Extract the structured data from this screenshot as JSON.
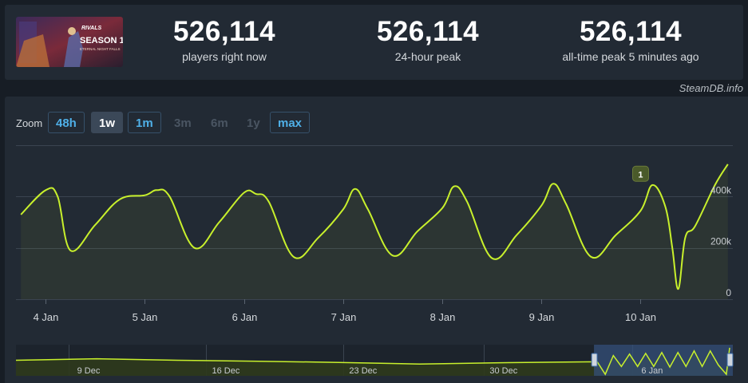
{
  "stats": [
    {
      "value": "526,114",
      "label": "players right now"
    },
    {
      "value": "526,114",
      "label": "24-hour peak"
    },
    {
      "value": "526,114",
      "label": "all-time peak 5 minutes ago"
    }
  ],
  "thumbnail": {
    "brand": "RIVALS",
    "title": "SEASON 1",
    "subtitle": "ETERNAL NIGHT FALLS"
  },
  "credit": "SteamDB.info",
  "zoom": {
    "label": "Zoom",
    "buttons": [
      {
        "label": "48h",
        "state": "normal"
      },
      {
        "label": "1w",
        "state": "active"
      },
      {
        "label": "1m",
        "state": "normal"
      },
      {
        "label": "3m",
        "state": "disabled"
      },
      {
        "label": "6m",
        "state": "disabled"
      },
      {
        "label": "1y",
        "state": "disabled"
      },
      {
        "label": "max",
        "state": "normal"
      }
    ]
  },
  "colors": {
    "line": "#c8f02c",
    "grid": "#3a4450",
    "navigator_fill": "#2f3a1c",
    "navigator_selection": "#34507a"
  },
  "chart_data": [
    {
      "type": "line",
      "series": [
        {
          "x": [
            3.75,
            4.0,
            4.12,
            4.25,
            4.5,
            4.75,
            5.0,
            5.12,
            5.25,
            5.5,
            5.75,
            6.0,
            6.12,
            6.25,
            6.5,
            6.75,
            7.0,
            7.12,
            7.25,
            7.5,
            7.75,
            8.0,
            8.12,
            8.25,
            8.5,
            8.75,
            9.0,
            9.12,
            9.25,
            9.5,
            9.75,
            10.0,
            10.12,
            10.25,
            10.32,
            10.38,
            10.45,
            10.55,
            10.75,
            10.88
          ],
          "y": [
            330,
            425,
            400,
            190,
            290,
            390,
            405,
            425,
            400,
            200,
            300,
            415,
            410,
            380,
            165,
            240,
            350,
            430,
            350,
            170,
            265,
            355,
            440,
            380,
            160,
            250,
            365,
            450,
            370,
            165,
            250,
            345,
            445,
            360,
            200,
            40,
            240,
            285,
            445,
            526
          ]
        }
      ],
      "x_ticks": [
        {
          "value": 4,
          "label": "4 Jan"
        },
        {
          "value": 5,
          "label": "5 Jan"
        },
        {
          "value": 6,
          "label": "6 Jan"
        },
        {
          "value": 7,
          "label": "7 Jan"
        },
        {
          "value": 8,
          "label": "8 Jan"
        },
        {
          "value": 9,
          "label": "9 Jan"
        },
        {
          "value": 10,
          "label": "10 Jan"
        }
      ],
      "y_ticks": [
        {
          "value": 0,
          "label": "0"
        },
        {
          "value": 200,
          "label": "200k"
        },
        {
          "value": 400,
          "label": "400k"
        }
      ],
      "xlim": [
        3.7,
        10.93
      ],
      "ylim": [
        0,
        600
      ],
      "annotation": {
        "x": 10.0,
        "y": 450,
        "label": "1"
      },
      "grid": true,
      "area_fill": true
    },
    {
      "type": "area",
      "series": [
        {
          "x": [
            0,
            5,
            10,
            15,
            20,
            25,
            30,
            34,
            36,
            36.5,
            37,
            37.5,
            38,
            38.5,
            39,
            39.5,
            40,
            40.5,
            41,
            41.5,
            42,
            42.5,
            43,
            43.5,
            44,
            44.2
          ],
          "y": [
            0.5,
            0.55,
            0.5,
            0.47,
            0.43,
            0.38,
            0.42,
            0.44,
            0.45,
            0.05,
            0.65,
            0.3,
            0.7,
            0.3,
            0.72,
            0.3,
            0.75,
            0.28,
            0.75,
            0.3,
            0.8,
            0.3,
            0.8,
            0.35,
            0.05,
            0.9
          ]
        }
      ],
      "x_ticks": [
        {
          "value": 4.5,
          "label": "9 Dec"
        },
        {
          "value": 13,
          "label": "16 Dec"
        },
        {
          "value": 21.5,
          "label": "23 Dec"
        },
        {
          "value": 30.2,
          "label": "30 Dec"
        },
        {
          "value": 39.4,
          "label": "6 Jan"
        }
      ],
      "xlim": [
        0,
        44.4
      ],
      "ylim": [
        0,
        1
      ],
      "selection": [
        35.8,
        44.4
      ]
    }
  ]
}
